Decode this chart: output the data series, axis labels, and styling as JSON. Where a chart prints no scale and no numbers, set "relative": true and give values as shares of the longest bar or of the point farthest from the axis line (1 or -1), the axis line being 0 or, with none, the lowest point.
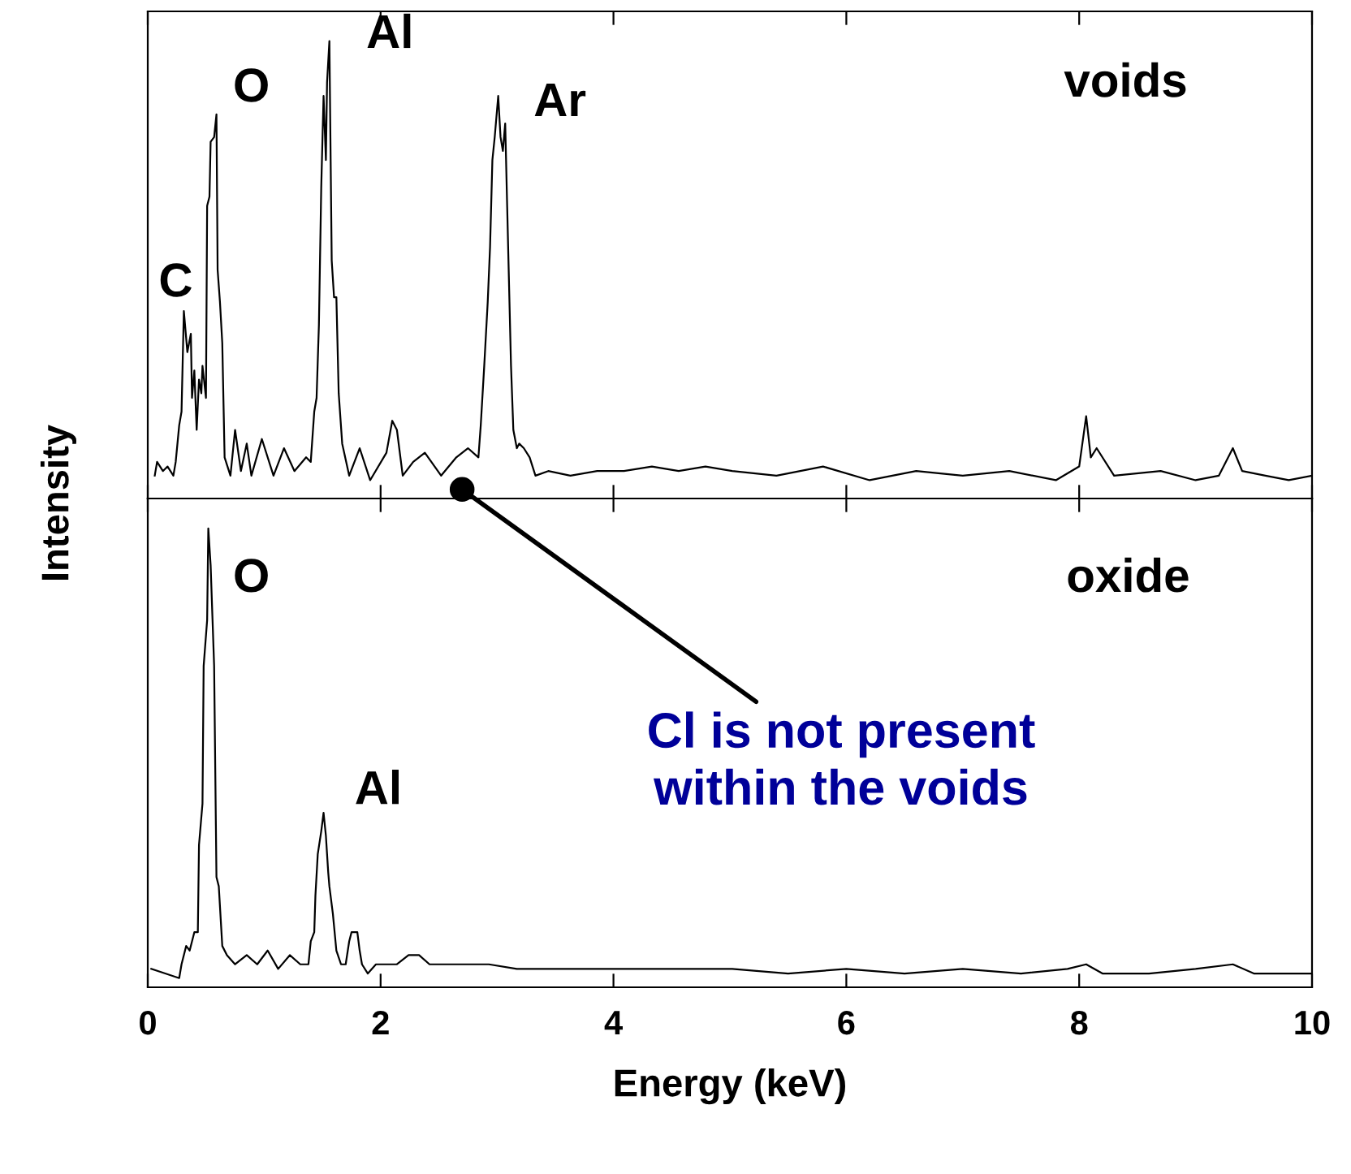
{
  "chart_data": [
    {
      "type": "line",
      "relative": true,
      "ylabel": "Intensity",
      "xlim": [
        0,
        10
      ],
      "xticks": [
        0,
        2,
        4,
        6,
        8,
        10
      ],
      "tick_labels": false,
      "grid": false,
      "x": [
        0.06,
        0.08,
        0.13,
        0.17,
        0.22,
        0.24,
        0.27,
        0.29,
        0.31,
        0.34,
        0.37,
        0.38,
        0.4,
        0.42,
        0.44,
        0.46,
        0.47,
        0.5,
        0.51,
        0.53,
        0.54,
        0.57,
        0.59,
        0.6,
        0.62,
        0.64,
        0.66,
        0.71,
        0.75,
        0.8,
        0.85,
        0.89,
        0.98,
        1.08,
        1.17,
        1.26,
        1.36,
        1.4,
        1.43,
        1.45,
        1.47,
        1.49,
        1.51,
        1.53,
        1.54,
        1.56,
        1.58,
        1.6,
        1.62,
        1.64,
        1.67,
        1.73,
        1.82,
        1.91,
        2.05,
        2.1,
        2.14,
        2.19,
        2.28,
        2.38,
        2.52,
        2.65,
        2.75,
        2.84,
        2.86,
        2.89,
        2.92,
        2.94,
        2.96,
        2.98,
        3.01,
        3.03,
        3.05,
        3.07,
        3.1,
        3.12,
        3.14,
        3.17,
        3.19,
        3.23,
        3.28,
        3.33,
        3.44,
        3.63,
        3.86,
        4.09,
        4.33,
        4.56,
        4.79,
        5.02,
        5.4,
        5.8,
        6.2,
        6.6,
        7.0,
        7.4,
        7.8,
        8.0,
        8.06,
        8.1,
        8.15,
        8.3,
        8.7,
        9.0,
        9.2,
        9.32,
        9.4,
        9.6,
        9.8,
        10.0
      ],
      "series": [
        {
          "color": "#000000",
          "values": [
            0.05,
            0.08,
            0.06,
            0.07,
            0.05,
            0.08,
            0.16,
            0.19,
            0.41,
            0.32,
            0.36,
            0.22,
            0.28,
            0.15,
            0.26,
            0.23,
            0.29,
            0.22,
            0.64,
            0.66,
            0.78,
            0.79,
            0.84,
            0.5,
            0.43,
            0.34,
            0.09,
            0.05,
            0.15,
            0.06,
            0.12,
            0.05,
            0.13,
            0.05,
            0.11,
            0.06,
            0.09,
            0.08,
            0.19,
            0.22,
            0.38,
            0.68,
            0.88,
            0.74,
            0.91,
            1.0,
            0.52,
            0.44,
            0.44,
            0.23,
            0.12,
            0.05,
            0.11,
            0.04,
            0.1,
            0.17,
            0.15,
            0.05,
            0.08,
            0.1,
            0.05,
            0.09,
            0.11,
            0.09,
            0.16,
            0.29,
            0.43,
            0.55,
            0.74,
            0.79,
            0.88,
            0.79,
            0.76,
            0.82,
            0.5,
            0.29,
            0.15,
            0.11,
            0.12,
            0.11,
            0.09,
            0.05,
            0.06,
            0.05,
            0.06,
            0.06,
            0.07,
            0.06,
            0.07,
            0.06,
            0.05,
            0.07,
            0.04,
            0.06,
            0.05,
            0.06,
            0.04,
            0.07,
            0.18,
            0.09,
            0.11,
            0.05,
            0.06,
            0.04,
            0.05,
            0.11,
            0.06,
            0.05,
            0.04,
            0.05
          ]
        }
      ],
      "annotations": [
        "C",
        "O",
        "Al",
        "Ar",
        "voids",
        {
          "text": "Cl is not present\nwithin the voids",
          "x": 2.7,
          "y": 0.02
        }
      ]
    },
    {
      "type": "line",
      "relative": true,
      "xlabel": "Energy (keV)",
      "xlim": [
        0,
        10
      ],
      "xticks": [
        0,
        2,
        4,
        6,
        8,
        10
      ],
      "tick_labels": "x",
      "grid": false,
      "x": [
        0.03,
        0.15,
        0.27,
        0.29,
        0.33,
        0.36,
        0.4,
        0.43,
        0.44,
        0.47,
        0.48,
        0.51,
        0.52,
        0.54,
        0.57,
        0.59,
        0.61,
        0.64,
        0.68,
        0.75,
        0.85,
        0.94,
        1.03,
        1.12,
        1.22,
        1.31,
        1.38,
        1.4,
        1.43,
        1.44,
        1.46,
        1.49,
        1.51,
        1.53,
        1.55,
        1.56,
        1.59,
        1.62,
        1.66,
        1.7,
        1.73,
        1.75,
        1.8,
        1.82,
        1.84,
        1.89,
        1.96,
        2.05,
        2.14,
        2.24,
        2.33,
        2.42,
        2.7,
        2.93,
        3.17,
        3.63,
        4.09,
        4.56,
        5.02,
        5.5,
        6.0,
        6.5,
        7.0,
        7.5,
        7.9,
        8.06,
        8.2,
        8.6,
        9.0,
        9.32,
        9.5,
        10.0
      ],
      "series": [
        {
          "color": "#000000",
          "values": [
            0.04,
            0.03,
            0.02,
            0.05,
            0.09,
            0.08,
            0.12,
            0.12,
            0.31,
            0.4,
            0.7,
            0.8,
            1.0,
            0.92,
            0.7,
            0.24,
            0.22,
            0.09,
            0.07,
            0.05,
            0.07,
            0.05,
            0.08,
            0.04,
            0.07,
            0.05,
            0.05,
            0.1,
            0.12,
            0.2,
            0.29,
            0.34,
            0.38,
            0.33,
            0.25,
            0.22,
            0.16,
            0.08,
            0.05,
            0.05,
            0.1,
            0.12,
            0.12,
            0.08,
            0.05,
            0.03,
            0.05,
            0.05,
            0.05,
            0.07,
            0.07,
            0.05,
            0.05,
            0.05,
            0.04,
            0.04,
            0.04,
            0.04,
            0.04,
            0.03,
            0.04,
            0.03,
            0.04,
            0.03,
            0.04,
            0.05,
            0.03,
            0.03,
            0.04,
            0.05,
            0.03,
            0.03
          ]
        }
      ],
      "annotations": [
        "O",
        "Al",
        "oxide"
      ]
    }
  ]
}
